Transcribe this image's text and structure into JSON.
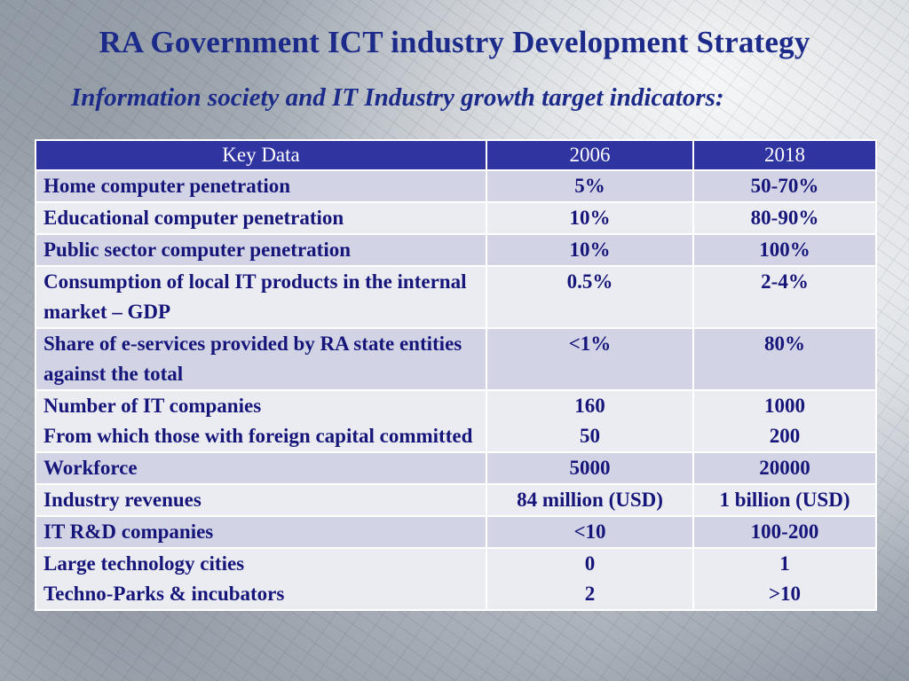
{
  "slide": {
    "title": "RA Government ICT industry Development Strategy",
    "subtitle": "Information society and IT Industry growth target indicators:"
  },
  "table": {
    "headers": [
      "Key Data",
      "2006",
      "2018"
    ],
    "rows": [
      {
        "label": [
          "Home computer penetration"
        ],
        "v2006": [
          "5%"
        ],
        "v2018": [
          "50-70%"
        ]
      },
      {
        "label": [
          "Educational computer penetration"
        ],
        "v2006": [
          "10%"
        ],
        "v2018": [
          "80-90%"
        ]
      },
      {
        "label": [
          "Public sector computer penetration"
        ],
        "v2006": [
          "10%"
        ],
        "v2018": [
          "100%"
        ]
      },
      {
        "label": [
          "Consumption of local IT products in the internal market – GDP"
        ],
        "v2006": [
          "0.5%"
        ],
        "v2018": [
          "2-4%"
        ]
      },
      {
        "label": [
          "Share of e-services provided by RA state entities against the total"
        ],
        "v2006": [
          "<1%"
        ],
        "v2018": [
          "80%"
        ]
      },
      {
        "label": [
          "Number of IT companies",
          "From which those with foreign capital committed"
        ],
        "v2006": [
          "160",
          "50"
        ],
        "v2018": [
          "1000",
          "200"
        ]
      },
      {
        "label": [
          "Workforce"
        ],
        "v2006": [
          "5000"
        ],
        "v2018": [
          "20000"
        ]
      },
      {
        "label": [
          "Industry revenues"
        ],
        "v2006": [
          "84 million (USD)"
        ],
        "v2018": [
          "1 billion (USD)"
        ]
      },
      {
        "label": [
          "IT R&D companies"
        ],
        "v2006": [
          "<10"
        ],
        "v2018": [
          "100-200"
        ]
      },
      {
        "label": [
          "Large technology cities",
          "Techno-Parks & incubators"
        ],
        "v2006": [
          "0",
          "2"
        ],
        "v2018": [
          "1",
          ">10"
        ]
      }
    ]
  }
}
